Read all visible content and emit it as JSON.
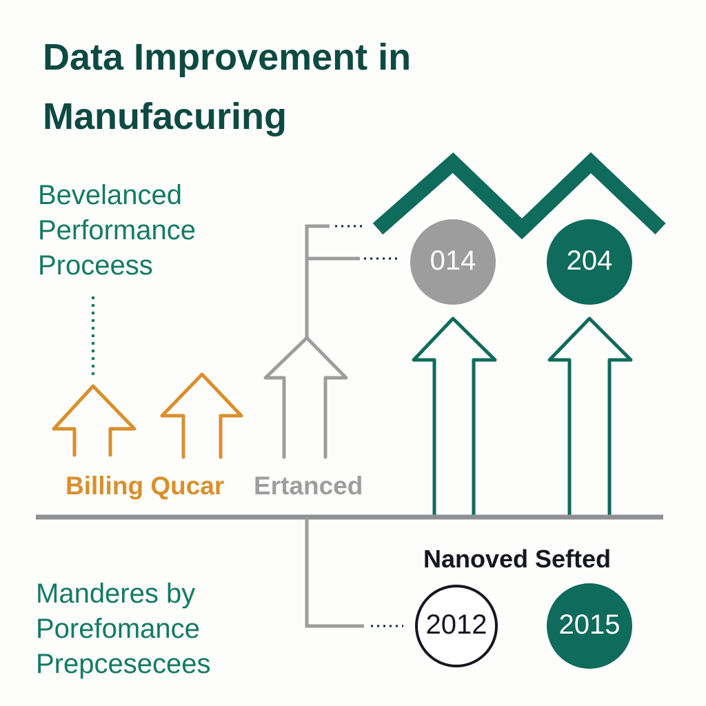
{
  "title": {
    "line1": "Data Improvement in",
    "line2": "Manufacuring"
  },
  "top_text": {
    "line1": "Bevelanced",
    "line2": "Performance",
    "line3": "Proceess"
  },
  "arrow_labels": {
    "orange": "Billing Qucar",
    "gray": "Ertanced"
  },
  "top_circles": [
    {
      "label": "014",
      "color": "#9d9d9d"
    },
    {
      "label": "204",
      "color": "#0f6b5c"
    }
  ],
  "bottom_heading": "Nanoved Sefted",
  "bottom_circles": [
    {
      "label": "2012",
      "style": "outline"
    },
    {
      "label": "2015",
      "color": "#0f6b5c"
    }
  ],
  "bottom_text": {
    "line1": "Manderes by",
    "line2": "Porefomance",
    "line3": "Prepcesecees"
  },
  "colors": {
    "teal": "#0f6b5c",
    "orange": "#d98f2b",
    "gray": "#9d9d9d",
    "title": "#0d4a42"
  }
}
